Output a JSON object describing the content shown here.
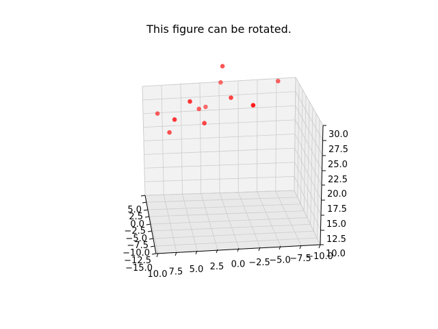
{
  "figure": {
    "title": "This figure can be rotated."
  },
  "chart_data": {
    "type": "scatter",
    "projection": "3d",
    "title": "This figure can be rotated.",
    "xlabel": "",
    "ylabel": "",
    "zlabel": "",
    "x_ticks": [
      "10.0",
      "7.5",
      "5.0",
      "2.5",
      "0.0",
      "−2.5",
      "−5.0",
      "−7.5",
      "−10.0"
    ],
    "y_ticks": [
      "−15.0",
      "−12.5",
      "−10.0",
      "−7.5",
      "−5.0",
      "−2.5",
      "0.0",
      "2.5",
      "5.0"
    ],
    "z_ticks": [
      "10.0",
      "12.5",
      "15.0",
      "17.5",
      "20.0",
      "22.5",
      "25.0",
      "27.5",
      "30.0"
    ],
    "marker_color": "#ff0000",
    "grid": true,
    "points": [
      {
        "x": 0.0,
        "y": 2.0,
        "z": 34.8
      },
      {
        "x": 0.0,
        "y": 4.0,
        "z": 30.8
      },
      {
        "x": -1.0,
        "y": 1.0,
        "z": 29.5
      },
      {
        "x": -7.5,
        "y": 3.0,
        "z": 31.2
      },
      {
        "x": -3.5,
        "y": -2.0,
        "z": 29.5
      },
      {
        "x": 4.5,
        "y": 0.0,
        "z": 29.6
      },
      {
        "x": 6.5,
        "y": 0.0,
        "z": 26.4
      },
      {
        "x": 8.5,
        "y": 3.0,
        "z": 26.0
      },
      {
        "x": 2.0,
        "y": 4.0,
        "z": 26.4
      },
      {
        "x": 3.0,
        "y": 3.0,
        "z": 26.6
      },
      {
        "x": 2.5,
        "y": 1.0,
        "z": 25.0
      },
      {
        "x": 7.0,
        "y": 2.0,
        "z": 23.0
      }
    ]
  }
}
